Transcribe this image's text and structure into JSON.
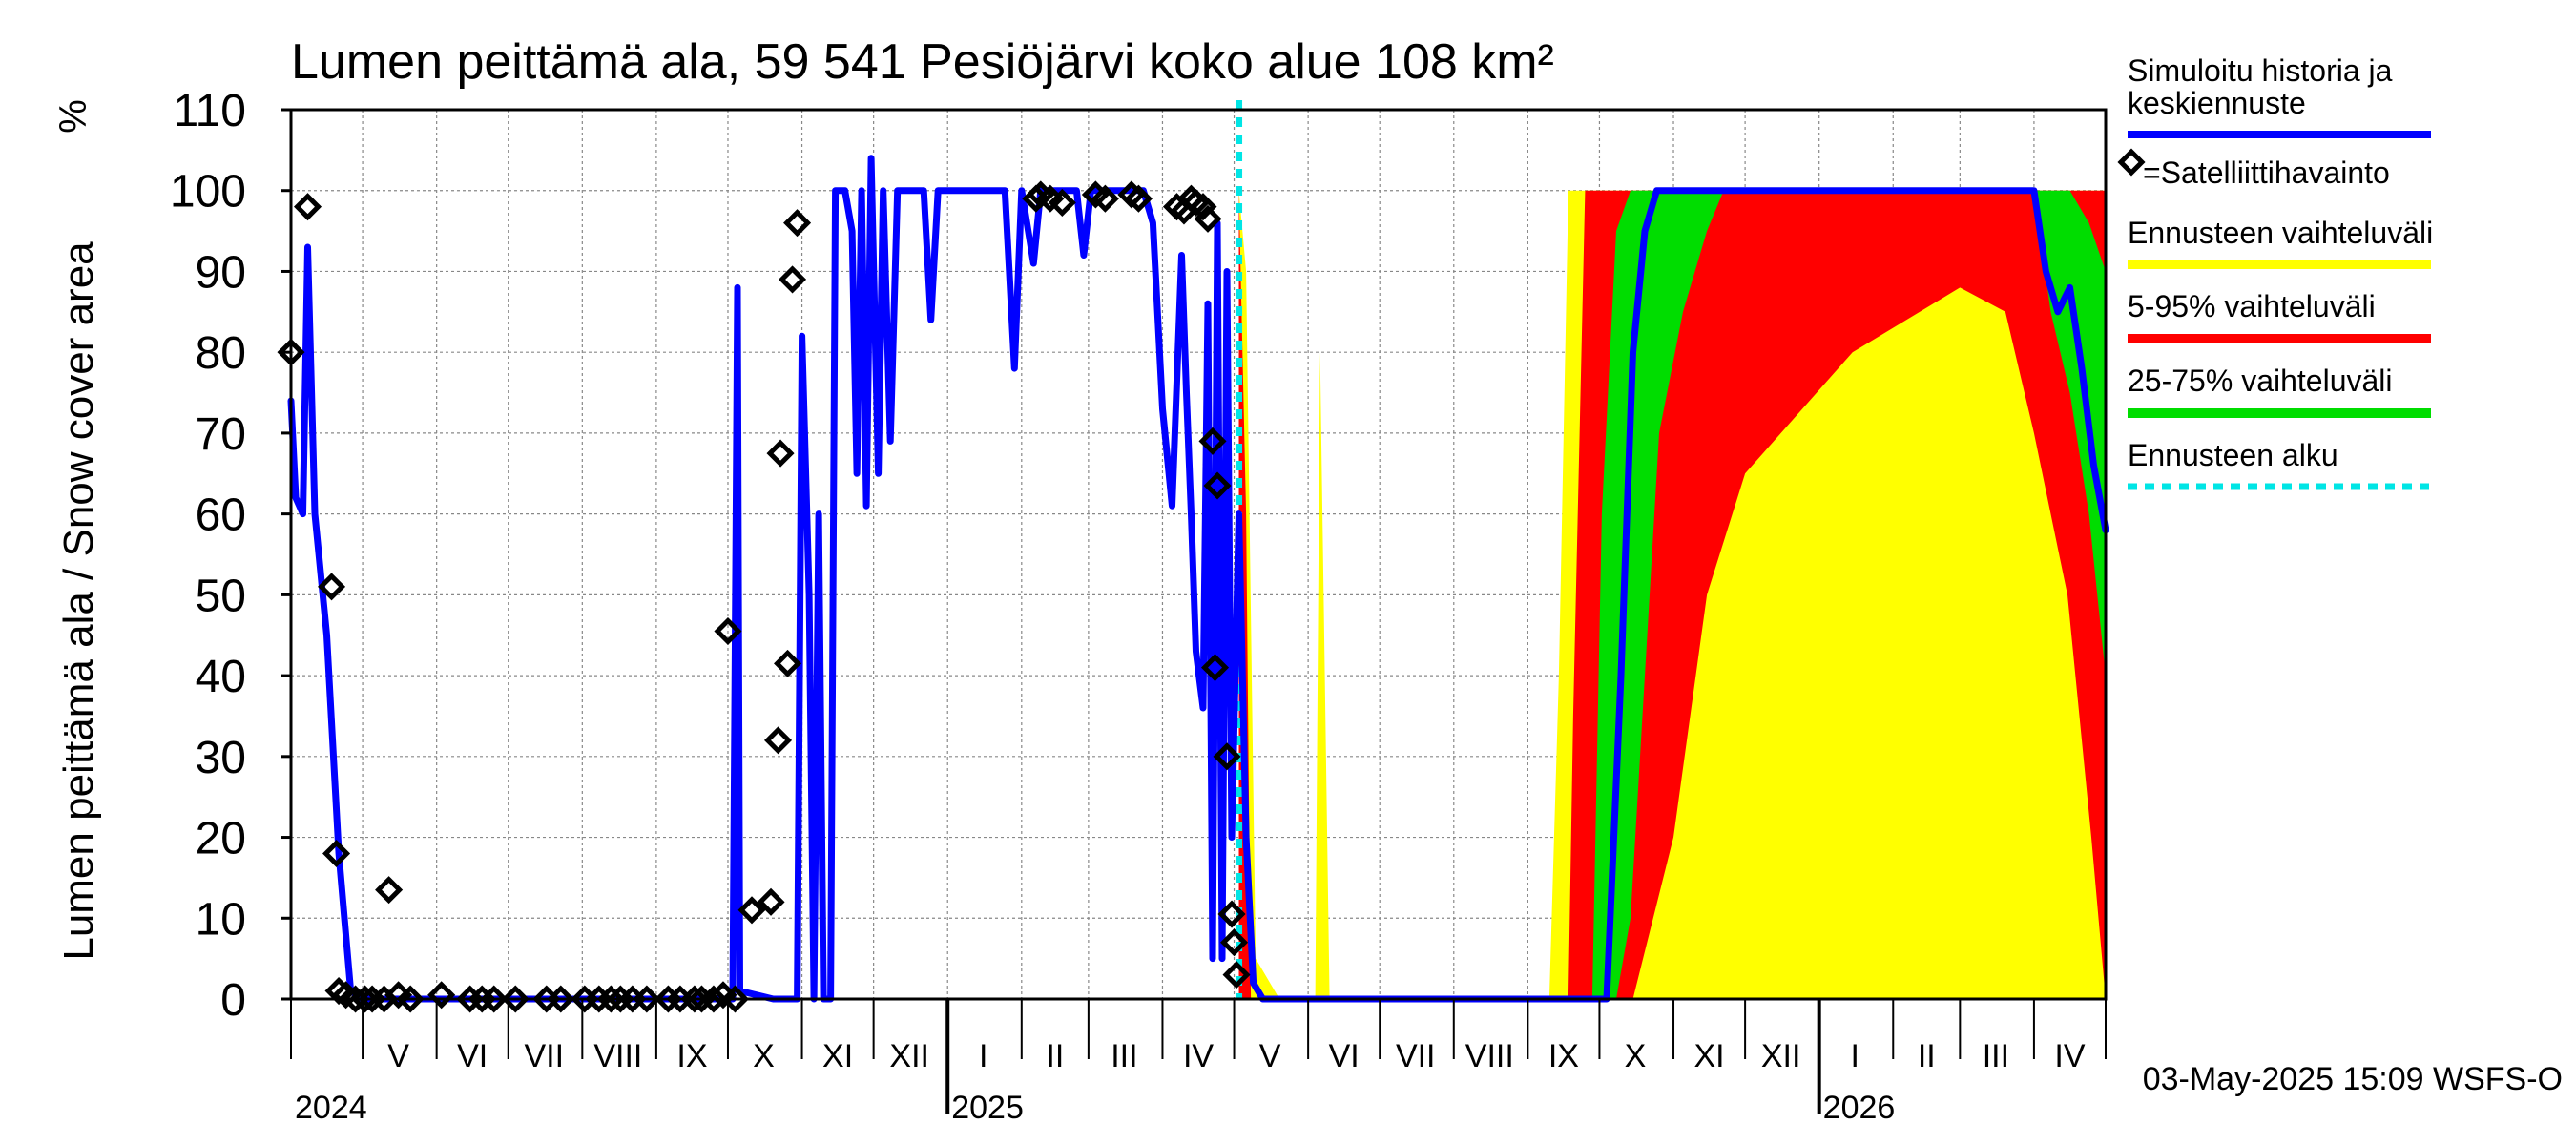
{
  "chart_data": {
    "type": "area",
    "title": "Lumen peittämä ala,  59 541 Pesiöjärvi koko alue 108 km²",
    "ylabel": "Lumen peittämä ala / Snow cover area",
    "yunit": "%",
    "ylim": [
      0,
      110
    ],
    "yticks": [
      0,
      10,
      20,
      30,
      40,
      50,
      60,
      70,
      80,
      90,
      100,
      110
    ],
    "x_range": [
      "2024-04-01",
      "2026-05-01"
    ],
    "month_labels": [
      {
        "label": "V",
        "date": "2024-05-16"
      },
      {
        "label": "VI",
        "date": "2024-06-16"
      },
      {
        "label": "VII",
        "date": "2024-07-16"
      },
      {
        "label": "VIII",
        "date": "2024-08-16"
      },
      {
        "label": "IX",
        "date": "2024-09-16"
      },
      {
        "label": "X",
        "date": "2024-10-16"
      },
      {
        "label": "XI",
        "date": "2024-11-16"
      },
      {
        "label": "XII",
        "date": "2024-12-16"
      },
      {
        "label": "I",
        "date": "2025-01-16"
      },
      {
        "label": "II",
        "date": "2025-02-15"
      },
      {
        "label": "III",
        "date": "2025-03-16"
      },
      {
        "label": "IV",
        "date": "2025-04-16"
      },
      {
        "label": "V",
        "date": "2025-05-16"
      },
      {
        "label": "VI",
        "date": "2025-06-16"
      },
      {
        "label": "VII",
        "date": "2025-07-16"
      },
      {
        "label": "VIII",
        "date": "2025-08-16"
      },
      {
        "label": "IX",
        "date": "2025-09-16"
      },
      {
        "label": "X",
        "date": "2025-10-16"
      },
      {
        "label": "XI",
        "date": "2025-11-16"
      },
      {
        "label": "XII",
        "date": "2025-12-16"
      },
      {
        "label": "I",
        "date": "2026-01-16"
      },
      {
        "label": "II",
        "date": "2026-02-15"
      },
      {
        "label": "III",
        "date": "2026-03-16"
      },
      {
        "label": "IV",
        "date": "2026-04-16"
      }
    ],
    "year_labels": [
      {
        "label": "2024",
        "date": "2024-04-01"
      },
      {
        "label": "2025",
        "date": "2025-01-01"
      },
      {
        "label": "2026",
        "date": "2026-01-01"
      }
    ],
    "forecast_start": "2025-05-03",
    "series": [
      {
        "name": "Simuloitu historia ja keskiennuste",
        "color": "#0000ff",
        "points": [
          [
            "2024-04-01",
            74
          ],
          [
            "2024-04-03",
            62
          ],
          [
            "2024-04-06",
            60
          ],
          [
            "2024-04-08",
            93
          ],
          [
            "2024-04-11",
            60
          ],
          [
            "2024-04-16",
            45
          ],
          [
            "2024-04-21",
            18
          ],
          [
            "2024-04-26",
            1
          ],
          [
            "2024-05-01",
            0
          ],
          [
            "2024-10-03",
            0
          ],
          [
            "2024-10-05",
            88
          ],
          [
            "2024-10-06",
            1
          ],
          [
            "2024-10-20",
            0
          ],
          [
            "2024-10-30",
            0
          ],
          [
            "2024-11-01",
            82
          ],
          [
            "2024-11-04",
            50
          ],
          [
            "2024-11-06",
            0
          ],
          [
            "2024-11-08",
            60
          ],
          [
            "2024-11-10",
            0
          ],
          [
            "2024-11-13",
            0
          ],
          [
            "2024-11-15",
            100
          ],
          [
            "2024-11-19",
            100
          ],
          [
            "2024-11-22",
            95
          ],
          [
            "2024-11-24",
            65
          ],
          [
            "2024-11-26",
            100
          ],
          [
            "2024-11-28",
            61
          ],
          [
            "2024-11-30",
            104
          ],
          [
            "2024-12-03",
            65
          ],
          [
            "2024-12-05",
            100
          ],
          [
            "2024-12-08",
            69
          ],
          [
            "2024-12-11",
            100
          ],
          [
            "2024-12-22",
            100
          ],
          [
            "2024-12-25",
            84
          ],
          [
            "2024-12-28",
            100
          ],
          [
            "2025-01-25",
            100
          ],
          [
            "2025-01-29",
            78
          ],
          [
            "2025-02-01",
            100
          ],
          [
            "2025-02-06",
            91
          ],
          [
            "2025-02-09",
            100
          ],
          [
            "2025-02-24",
            100
          ],
          [
            "2025-02-27",
            92
          ],
          [
            "2025-03-02",
            100
          ],
          [
            "2025-03-24",
            100
          ],
          [
            "2025-03-28",
            96
          ],
          [
            "2025-04-01",
            73
          ],
          [
            "2025-04-05",
            61
          ],
          [
            "2025-04-09",
            92
          ],
          [
            "2025-04-11",
            75
          ],
          [
            "2025-04-13",
            60
          ],
          [
            "2025-04-15",
            43
          ],
          [
            "2025-04-18",
            36
          ],
          [
            "2025-04-20",
            86
          ],
          [
            "2025-04-22",
            5
          ],
          [
            "2025-04-24",
            96
          ],
          [
            "2025-04-26",
            5
          ],
          [
            "2025-04-28",
            90
          ],
          [
            "2025-04-30",
            20
          ],
          [
            "2025-05-03",
            60
          ],
          [
            "2025-05-06",
            20
          ],
          [
            "2025-05-09",
            2
          ],
          [
            "2025-05-13",
            0
          ],
          [
            "2025-10-04",
            0
          ],
          [
            "2025-10-10",
            40
          ],
          [
            "2025-10-15",
            80
          ],
          [
            "2025-10-20",
            95
          ],
          [
            "2025-10-25",
            100
          ],
          [
            "2026-04-01",
            100
          ],
          [
            "2026-04-06",
            90
          ],
          [
            "2026-04-11",
            85
          ],
          [
            "2026-04-16",
            88
          ],
          [
            "2026-04-21",
            78
          ],
          [
            "2026-04-26",
            66
          ],
          [
            "2026-05-01",
            58
          ]
        ]
      }
    ],
    "bands": [
      {
        "name": "Ennusteen vaihteluväli",
        "color": "#ffff00",
        "points": [
          [
            "2025-05-03",
            0,
            100
          ],
          [
            "2025-05-06",
            0,
            90
          ],
          [
            "2025-05-10",
            0,
            5
          ],
          [
            "2025-05-20",
            0,
            0
          ],
          [
            "2025-06-04",
            0,
            0
          ],
          [
            "2025-06-06",
            0,
            80
          ],
          [
            "2025-06-10",
            0,
            0
          ],
          [
            "2025-09-10",
            0,
            0
          ],
          [
            "2025-09-14",
            0,
            40
          ],
          [
            "2025-09-18",
            0,
            100
          ],
          [
            "2026-01-10",
            0,
            100
          ],
          [
            "2026-03-01",
            0,
            100
          ],
          [
            "2026-04-01",
            0,
            100
          ],
          [
            "2026-05-01",
            0,
            100
          ]
        ]
      },
      {
        "name": "5-95% vaihteluväli",
        "color": "#ff0000",
        "points": [
          [
            "2025-05-03",
            0,
            100
          ],
          [
            "2025-05-06",
            0,
            60
          ],
          [
            "2025-05-08",
            0,
            0
          ],
          [
            "2025-09-18",
            0,
            0
          ],
          [
            "2025-09-20",
            0,
            35
          ],
          [
            "2025-09-25",
            0,
            100
          ],
          [
            "2025-10-15",
            0,
            100
          ],
          [
            "2025-11-01",
            20,
            100
          ],
          [
            "2025-11-15",
            50,
            100
          ],
          [
            "2025-12-01",
            65,
            100
          ],
          [
            "2026-01-15",
            80,
            100
          ],
          [
            "2026-03-01",
            88,
            100
          ],
          [
            "2026-03-20",
            85,
            100
          ],
          [
            "2026-04-01",
            70,
            100
          ],
          [
            "2026-04-15",
            50,
            100
          ],
          [
            "2026-04-25",
            20,
            100
          ],
          [
            "2026-05-01",
            0,
            100
          ]
        ]
      },
      {
        "name": "25-75% vaihteluväli",
        "color": "#00dd00",
        "points": [
          [
            "2025-09-28",
            0,
            0
          ],
          [
            "2025-10-02",
            0,
            60
          ],
          [
            "2025-10-08",
            0,
            95
          ],
          [
            "2025-10-14",
            10,
            100
          ],
          [
            "2025-10-20",
            40,
            100
          ],
          [
            "2025-10-26",
            70,
            100
          ],
          [
            "2025-11-05",
            85,
            100
          ],
          [
            "2025-11-15",
            95,
            100
          ],
          [
            "2025-11-22",
            100,
            100
          ],
          [
            "2026-04-01",
            100,
            100
          ],
          [
            "2026-04-08",
            85,
            100
          ],
          [
            "2026-04-16",
            75,
            100
          ],
          [
            "2026-04-24",
            60,
            96
          ],
          [
            "2026-05-01",
            40,
            90
          ]
        ]
      }
    ],
    "observations": {
      "name": "=Satelliittihavainto",
      "points": [
        [
          "2024-04-01",
          80
        ],
        [
          "2024-04-08",
          98
        ],
        [
          "2024-04-18",
          51
        ],
        [
          "2024-04-20",
          18
        ],
        [
          "2024-04-21",
          1
        ],
        [
          "2024-04-24",
          0.5
        ],
        [
          "2024-04-28",
          0
        ],
        [
          "2024-05-02",
          0
        ],
        [
          "2024-05-05",
          0
        ],
        [
          "2024-05-10",
          0
        ],
        [
          "2024-05-12",
          13.5
        ],
        [
          "2024-05-16",
          0.5
        ],
        [
          "2024-05-21",
          0
        ],
        [
          "2024-06-03",
          0.5
        ],
        [
          "2024-06-15",
          0
        ],
        [
          "2024-06-20",
          0
        ],
        [
          "2024-06-25",
          0
        ],
        [
          "2024-07-04",
          0
        ],
        [
          "2024-07-17",
          0
        ],
        [
          "2024-07-23",
          0
        ],
        [
          "2024-08-02",
          0
        ],
        [
          "2024-08-08",
          0
        ],
        [
          "2024-08-13",
          0
        ],
        [
          "2024-08-17",
          0
        ],
        [
          "2024-08-22",
          0
        ],
        [
          "2024-08-28",
          0
        ],
        [
          "2024-09-06",
          0
        ],
        [
          "2024-09-11",
          0
        ],
        [
          "2024-09-17",
          0
        ],
        [
          "2024-09-20",
          0
        ],
        [
          "2024-09-25",
          0
        ],
        [
          "2024-09-29",
          0.5
        ],
        [
          "2024-10-01",
          45.5
        ],
        [
          "2024-10-04",
          0
        ],
        [
          "2024-10-11",
          11
        ],
        [
          "2024-10-19",
          12
        ],
        [
          "2024-10-22",
          32
        ],
        [
          "2024-10-23",
          67.5
        ],
        [
          "2024-10-26",
          41.5
        ],
        [
          "2024-10-28",
          89
        ],
        [
          "2024-10-30",
          96
        ],
        [
          "2025-02-07",
          99
        ],
        [
          "2025-02-09",
          99.5
        ],
        [
          "2025-02-13",
          99
        ],
        [
          "2025-02-18",
          98.5
        ],
        [
          "2025-03-04",
          99.5
        ],
        [
          "2025-03-08",
          99
        ],
        [
          "2025-03-19",
          99.5
        ],
        [
          "2025-03-22",
          99
        ],
        [
          "2025-04-07",
          98
        ],
        [
          "2025-04-10",
          97.5
        ],
        [
          "2025-04-13",
          99
        ],
        [
          "2025-04-15",
          98.5
        ],
        [
          "2025-04-18",
          98
        ],
        [
          "2025-04-20",
          96.5
        ],
        [
          "2025-04-22",
          69
        ],
        [
          "2025-04-24",
          63.5
        ],
        [
          "2025-04-23",
          41
        ],
        [
          "2025-04-28",
          30
        ],
        [
          "2025-04-30",
          10.5
        ],
        [
          "2025-05-01",
          7
        ],
        [
          "2025-05-02",
          3
        ]
      ]
    },
    "legend": [
      {
        "label": "Simuloitu historia ja keskiennuste",
        "style": "line",
        "color": "#0000ff"
      },
      {
        "label": "=Satelliittihavainto",
        "style": "marker",
        "color": "#000000"
      },
      {
        "label": "Ennusteen vaihteluväli",
        "style": "line",
        "color": "#ffff00"
      },
      {
        "label": "5-95% vaihteluväli",
        "style": "line",
        "color": "#ff0000"
      },
      {
        "label": "25-75% vaihteluväli",
        "style": "line",
        "color": "#00dd00"
      },
      {
        "label": "Ennusteen alku",
        "style": "dashed",
        "color": "#00e5e5"
      }
    ],
    "legend_position": "right",
    "footer": "03-May-2025 15:09 WSFS-O"
  }
}
